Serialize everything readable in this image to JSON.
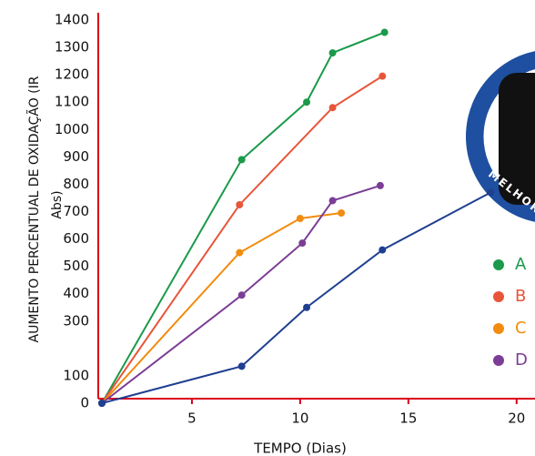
{
  "chart_data": {
    "type": "line",
    "ylabel": [
      "AUMENTO PERCENTUAL DE OXIDAÇÃO (IR",
      "Abs)"
    ],
    "xlabel": "TEMPO (Dias)",
    "xlim": [
      0,
      20.85
    ],
    "ylim": [
      0,
      1400
    ],
    "xticks": [
      5,
      10,
      15,
      20
    ],
    "yticks": [
      0,
      100,
      300,
      400,
      500,
      600,
      700,
      800,
      900,
      1000,
      1100,
      1200,
      1300,
      1400
    ],
    "axis_color": "#d9001b",
    "badge_text": "MELHOR P",
    "series": [
      {
        "name": "A",
        "color": "#1a9a4a",
        "x": [
          0.84,
          7.3,
          10.3,
          11.5,
          13.9
        ],
        "values": [
          0,
          890,
          1100,
          1280,
          1355
        ]
      },
      {
        "name": "B",
        "color": "#e8553a",
        "x": [
          0.84,
          7.2,
          11.5,
          13.8
        ],
        "values": [
          0,
          725,
          1080,
          1195
        ]
      },
      {
        "name": "C",
        "color": "#f28c0f",
        "x": [
          0.84,
          7.2,
          10.0,
          11.9
        ],
        "values": [
          0,
          550,
          675,
          695
        ]
      },
      {
        "name": "D",
        "color": "#7b3d95",
        "x": [
          0.84,
          7.3,
          10.1,
          11.5,
          13.7
        ],
        "values": [
          0,
          395,
          585,
          740,
          795
        ]
      },
      {
        "color": "#1f3f8f",
        "x": [
          0.84,
          7.3,
          10.3,
          13.8,
          18.8
        ],
        "values": [
          0,
          135,
          350,
          560,
          770
        ]
      }
    ]
  }
}
